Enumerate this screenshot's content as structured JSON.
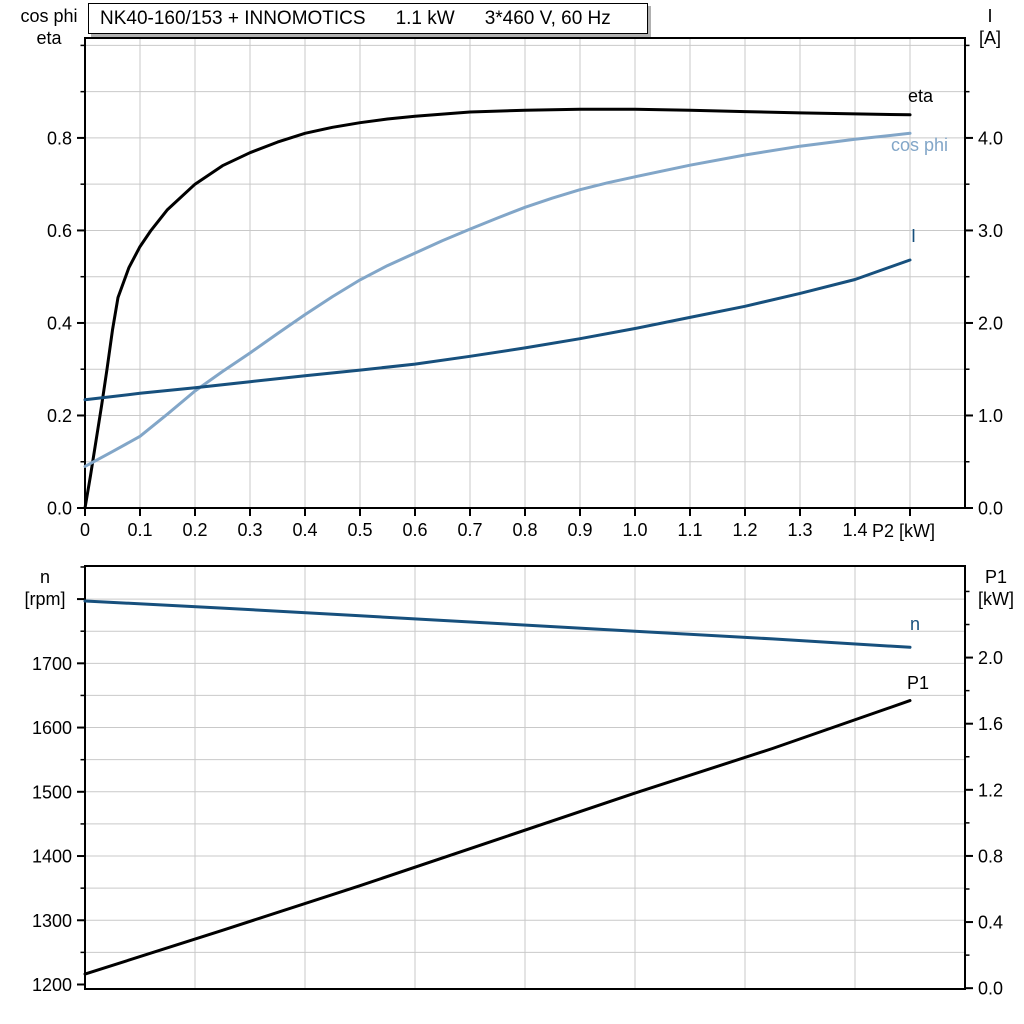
{
  "title_box": {
    "model": "NK40-160/153 + INNOMOTICS",
    "power": "1.1 kW",
    "voltage": "3*460 V, 60 Hz"
  },
  "colors": {
    "grid": "#C9C9C9",
    "axis": "#000000",
    "eta_black": "#000000",
    "cos_phi_light_blue": "#82A6C8",
    "current_dark_blue": "#17507D",
    "box_shadow": "#B0B0B0"
  },
  "chart_data": [
    {
      "type": "line",
      "title": "",
      "x_axis": {
        "label": "P2 [kW]",
        "min": 0,
        "max": 1.6,
        "grid_step": 0.1,
        "tick_values": [
          0,
          0.1,
          0.2,
          0.3,
          0.4,
          0.5,
          0.6,
          0.7,
          0.8,
          0.9,
          1.0,
          1.1,
          1.2,
          1.3,
          1.4,
          1.5
        ],
        "tick_labels": [
          "0",
          "0.1",
          "0.2",
          "0.3",
          "0.4",
          "0.5",
          "0.6",
          "0.7",
          "0.8",
          "0.9",
          "1.0",
          "1.1",
          "1.2",
          "1.3",
          "1.4",
          ""
        ]
      },
      "y_left": {
        "header": [
          "cos phi",
          "eta"
        ],
        "min": 0,
        "max": 1.016,
        "grid": {
          "start": 0.1,
          "step": 0.1,
          "end": 1.0
        },
        "labeled_ticks": [
          [
            0,
            "0.0"
          ],
          [
            0.2,
            "0.2"
          ],
          [
            0.4,
            "0.4"
          ],
          [
            0.6,
            "0.6"
          ],
          [
            0.8,
            "0.8"
          ]
        ],
        "minor_ticks": [
          0.1,
          0.3,
          0.5,
          0.7,
          0.9,
          1.0
        ]
      },
      "y_right": {
        "header": [
          "I",
          "[A]"
        ],
        "min": 0,
        "max": 5.08,
        "labeled_ticks": [
          [
            0,
            "0.0"
          ],
          [
            1,
            "1.0"
          ],
          [
            2,
            "2.0"
          ],
          [
            3,
            "3.0"
          ],
          [
            4,
            "4.0"
          ]
        ],
        "minor_ticks": [
          0.5,
          1.5,
          2.5,
          3.5,
          4.5,
          5.0
        ]
      },
      "series": [
        {
          "name": "eta",
          "axis": "left",
          "color": "#000000",
          "points": [
            [
              0,
              0
            ],
            [
              0.01,
              0.07
            ],
            [
              0.02,
              0.145
            ],
            [
              0.03,
              0.22
            ],
            [
              0.04,
              0.3
            ],
            [
              0.05,
              0.385
            ],
            [
              0.06,
              0.455
            ],
            [
              0.08,
              0.52
            ],
            [
              0.1,
              0.565
            ],
            [
              0.12,
              0.6
            ],
            [
              0.15,
              0.645
            ],
            [
              0.2,
              0.7
            ],
            [
              0.25,
              0.74
            ],
            [
              0.3,
              0.768
            ],
            [
              0.35,
              0.791
            ],
            [
              0.4,
              0.81
            ],
            [
              0.45,
              0.823
            ],
            [
              0.5,
              0.833
            ],
            [
              0.55,
              0.841
            ],
            [
              0.6,
              0.847
            ],
            [
              0.7,
              0.856
            ],
            [
              0.8,
              0.86
            ],
            [
              0.9,
              0.862
            ],
            [
              1.0,
              0.862
            ],
            [
              1.1,
              0.86
            ],
            [
              1.2,
              0.857
            ],
            [
              1.3,
              0.854
            ],
            [
              1.4,
              0.852
            ],
            [
              1.5,
              0.85
            ]
          ]
        },
        {
          "name": "cos phi",
          "axis": "left",
          "color": "#82A6C8",
          "points": [
            [
              0,
              0.09
            ],
            [
              0.05,
              0.122
            ],
            [
              0.1,
              0.155
            ],
            [
              0.15,
              0.203
            ],
            [
              0.2,
              0.253
            ],
            [
              0.25,
              0.295
            ],
            [
              0.3,
              0.335
            ],
            [
              0.35,
              0.377
            ],
            [
              0.4,
              0.418
            ],
            [
              0.45,
              0.457
            ],
            [
              0.5,
              0.493
            ],
            [
              0.55,
              0.524
            ],
            [
              0.6,
              0.551
            ],
            [
              0.65,
              0.578
            ],
            [
              0.7,
              0.603
            ],
            [
              0.75,
              0.627
            ],
            [
              0.8,
              0.65
            ],
            [
              0.85,
              0.67
            ],
            [
              0.9,
              0.688
            ],
            [
              0.95,
              0.703
            ],
            [
              1.0,
              0.716
            ],
            [
              1.1,
              0.741
            ],
            [
              1.2,
              0.763
            ],
            [
              1.3,
              0.782
            ],
            [
              1.4,
              0.797
            ],
            [
              1.5,
              0.81
            ]
          ]
        },
        {
          "name": "I",
          "axis": "right",
          "color": "#17507D",
          "points": [
            [
              0,
              1.17
            ],
            [
              0.1,
              1.24
            ],
            [
              0.2,
              1.3
            ],
            [
              0.3,
              1.365
            ],
            [
              0.4,
              1.43
            ],
            [
              0.5,
              1.49
            ],
            [
              0.6,
              1.555
            ],
            [
              0.7,
              1.64
            ],
            [
              0.8,
              1.73
            ],
            [
              0.9,
              1.83
            ],
            [
              1.0,
              1.94
            ],
            [
              1.1,
              2.06
            ],
            [
              1.2,
              2.18
            ],
            [
              1.3,
              2.32
            ],
            [
              1.4,
              2.47
            ],
            [
              1.5,
              2.68
            ]
          ]
        }
      ]
    },
    {
      "type": "line",
      "title": "",
      "x_axis": {
        "label": "",
        "min": 0,
        "max": 1.6,
        "grid_step": 0.2,
        "tick_values": [],
        "tick_labels": []
      },
      "y_left": {
        "header": [
          "n",
          "[rpm]"
        ],
        "min": 1193,
        "max": 1851.5,
        "grid": {
          "start": 1250,
          "step": 50,
          "end": 1850
        },
        "labeled_ticks": [
          [
            1200,
            "1200"
          ],
          [
            1300,
            "1300"
          ],
          [
            1400,
            "1400"
          ],
          [
            1500,
            "1500"
          ],
          [
            1600,
            "1600"
          ],
          [
            1700,
            "1700"
          ],
          [
            1800,
            ""
          ]
        ],
        "minor_ticks": [
          1250,
          1350,
          1450,
          1550,
          1650,
          1750,
          1850
        ]
      },
      "y_right": {
        "header": [
          "P1",
          "[kW]"
        ],
        "min": -0.005,
        "max": 2.554,
        "labeled_ticks": [
          [
            0,
            "0.0"
          ],
          [
            0.4,
            "0.4"
          ],
          [
            0.8,
            "0.8"
          ],
          [
            1.2,
            "1.2"
          ],
          [
            1.6,
            "1.6"
          ],
          [
            2.0,
            "2.0"
          ]
        ],
        "minor_ticks": [
          0.2,
          0.6,
          1.0,
          1.4,
          1.8,
          2.2,
          2.4
        ]
      },
      "series": [
        {
          "name": "n",
          "axis": "left",
          "color": "#17507D",
          "points": [
            [
              0,
              1797
            ],
            [
              0.25,
              1786
            ],
            [
              0.5,
              1774
            ],
            [
              0.75,
              1762
            ],
            [
              1.0,
              1750
            ],
            [
              1.25,
              1738
            ],
            [
              1.5,
              1725
            ]
          ]
        },
        {
          "name": "P1",
          "axis": "right",
          "color": "#000000",
          "points": [
            [
              0,
              0.085
            ],
            [
              0.25,
              0.35
            ],
            [
              0.5,
              0.62
            ],
            [
              0.75,
              0.9
            ],
            [
              1.0,
              1.18
            ],
            [
              1.25,
              1.45
            ],
            [
              1.5,
              1.74
            ]
          ]
        }
      ]
    }
  ]
}
